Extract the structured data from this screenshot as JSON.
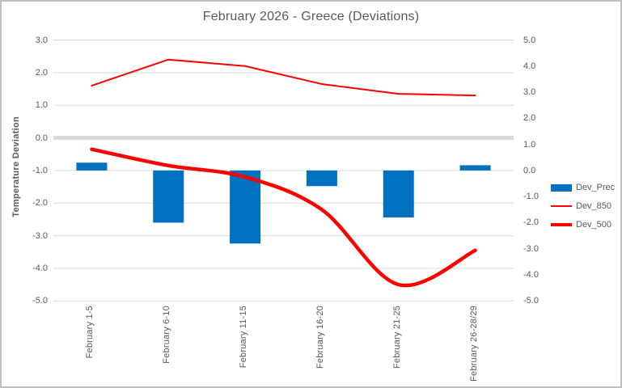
{
  "window": {
    "title": "February 2026 - Greece (Deviations)"
  },
  "colors": {
    "bar_blue": "#0070C0",
    "line_red": "#FF0000",
    "gridline": "#D9D9D9",
    "zero_band": "#D9D9D9",
    "axis_text": "#595959",
    "border": "#BFBFBF",
    "background": "#FFFFFF"
  },
  "chart_data": {
    "type": "combo-bar-line",
    "title": "February 2026 - Greece (Deviations)",
    "categories": [
      "February 1-5",
      "February 6-10",
      "February 11-15",
      "February 16-20",
      "February 21-25",
      "February 26-28/29"
    ],
    "left_axis": {
      "label": "Temperature Deviation",
      "min": -5.0,
      "max": 3.0,
      "ticks": [
        "3.0",
        "2.0",
        "1.0",
        "0.0",
        "-1.0",
        "-2.0",
        "-3.0",
        "-4.0",
        "-5.0"
      ]
    },
    "right_axis": {
      "label": "",
      "min": -5.0,
      "max": 5.0,
      "ticks": [
        "5.0",
        "4.0",
        "3.0",
        "2.0",
        "1.0",
        "0.0",
        "-1.0",
        "-2.0",
        "-3.0",
        "-4.0",
        "-5.0"
      ]
    },
    "grid": true,
    "legend_position": "right",
    "series": [
      {
        "name": "Dev_Prec",
        "type": "bar",
        "axis": "right",
        "color": "#0070C0",
        "values": [
          0.3,
          -2.0,
          -2.8,
          -0.6,
          -1.8,
          0.2
        ]
      },
      {
        "name": "Dev_850",
        "type": "line",
        "axis": "left",
        "color": "#FF0000",
        "stroke_width": 2,
        "smooth": false,
        "values": [
          1.6,
          2.4,
          2.2,
          1.65,
          1.35,
          1.3
        ]
      },
      {
        "name": "Dev_500",
        "type": "line",
        "axis": "left",
        "color": "#FF0000",
        "stroke_width": 4.5,
        "smooth": true,
        "values": [
          -0.35,
          -0.85,
          -1.2,
          -2.2,
          -4.5,
          -3.45
        ]
      }
    ]
  }
}
